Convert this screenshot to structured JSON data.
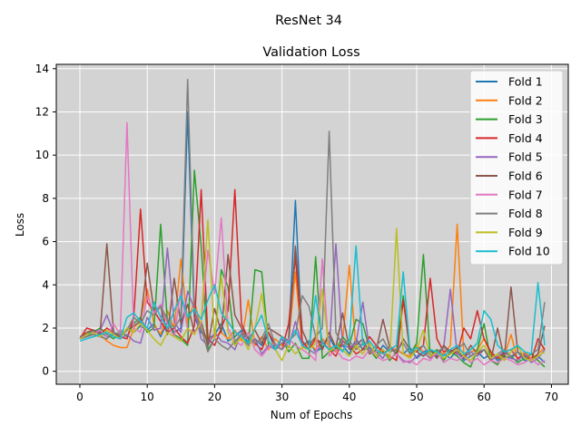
{
  "chart_data": {
    "type": "line",
    "suptitle": "ResNet 34",
    "title": "Validation Loss",
    "xlabel": "Num of Epochs",
    "ylabel": "Loss",
    "xlim": [
      -3.5,
      72.5
    ],
    "ylim": [
      -0.6,
      14.2
    ],
    "xticks": [
      0,
      10,
      20,
      30,
      40,
      50,
      60,
      70
    ],
    "yticks": [
      0,
      2,
      4,
      6,
      8,
      10,
      12,
      14
    ],
    "grid": true,
    "background": "#d3d3d3",
    "legend_position": "top-right",
    "x": [
      0,
      1,
      2,
      3,
      4,
      5,
      6,
      7,
      8,
      9,
      10,
      11,
      12,
      13,
      14,
      15,
      16,
      17,
      18,
      19,
      20,
      21,
      22,
      23,
      24,
      25,
      26,
      27,
      28,
      29,
      30,
      31,
      32,
      33,
      34,
      35,
      36,
      37,
      38,
      39,
      40,
      41,
      42,
      43,
      44,
      45,
      46,
      47,
      48,
      49,
      50,
      51,
      52,
      53,
      54,
      55,
      56,
      57,
      58,
      59,
      60,
      61,
      62,
      63,
      64,
      65,
      66,
      67,
      68,
      69
    ],
    "series": [
      {
        "name": "Fold 1",
        "color": "#1f77b4",
        "values": [
          1.5,
          1.7,
          1.9,
          1.8,
          1.6,
          1.7,
          1.5,
          2.0,
          1.8,
          2.1,
          1.9,
          2.2,
          1.6,
          2.3,
          1.8,
          2.0,
          12.0,
          2.5,
          1.8,
          1.5,
          1.7,
          2.2,
          1.4,
          1.6,
          1.9,
          1.3,
          1.5,
          1.2,
          1.8,
          1.0,
          1.3,
          1.5,
          7.9,
          1.2,
          1.4,
          0.9,
          1.1,
          1.6,
          1.0,
          1.2,
          0.8,
          1.5,
          1.0,
          1.1,
          0.7,
          1.2,
          0.9,
          1.0,
          0.8,
          1.1,
          0.6,
          0.9,
          1.0,
          0.7,
          0.8,
          0.6,
          1.0,
          0.5,
          0.7,
          0.9,
          0.6,
          0.8,
          0.5,
          0.7,
          0.6,
          0.9,
          0.5,
          0.6,
          0.7,
          0.4
        ]
      },
      {
        "name": "Fold 2",
        "color": "#ff7f0e",
        "values": [
          1.6,
          1.8,
          1.9,
          1.7,
          1.4,
          1.2,
          1.1,
          1.1,
          2.0,
          2.4,
          3.8,
          2.2,
          1.7,
          2.8,
          2.0,
          5.2,
          2.2,
          3.3,
          1.9,
          1.5,
          1.6,
          1.8,
          1.5,
          1.9,
          1.4,
          3.3,
          1.2,
          1.6,
          1.0,
          1.5,
          1.2,
          1.4,
          4.6,
          1.1,
          1.3,
          1.0,
          1.5,
          1.2,
          0.9,
          1.4,
          4.9,
          1.0,
          1.3,
          0.9,
          1.2,
          0.8,
          1.1,
          1.0,
          0.8,
          0.7,
          1.2,
          0.9,
          0.6,
          1.0,
          0.8,
          1.2,
          6.8,
          0.7,
          0.9,
          1.0,
          1.5,
          0.8,
          0.6,
          0.7,
          1.7,
          0.5,
          0.9,
          0.6,
          0.8,
          1.1
        ]
      },
      {
        "name": "Fold 3",
        "color": "#2ca02c",
        "values": [
          1.5,
          1.6,
          1.8,
          2.0,
          1.7,
          1.5,
          1.9,
          1.6,
          2.2,
          2.5,
          1.8,
          2.0,
          6.8,
          2.3,
          1.7,
          1.5,
          1.2,
          9.3,
          5.8,
          1.0,
          1.5,
          4.7,
          3.9,
          1.3,
          1.6,
          1.2,
          4.7,
          4.6,
          1.2,
          1.0,
          1.5,
          0.9,
          1.3,
          0.6,
          0.6,
          5.3,
          0.6,
          0.9,
          1.0,
          1.6,
          1.2,
          2.4,
          2.2,
          1.0,
          0.6,
          1.0,
          0.5,
          0.9,
          3.5,
          0.8,
          1.3,
          5.4,
          0.7,
          1.0,
          0.5,
          0.9,
          0.7,
          0.4,
          0.2,
          1.0,
          2.2,
          0.5,
          0.3,
          0.9,
          0.7,
          0.4,
          0.6,
          0.8,
          0.5,
          0.2
        ]
      },
      {
        "name": "Fold 4",
        "color": "#d62728",
        "values": [
          1.5,
          2.0,
          1.9,
          1.7,
          2.0,
          1.8,
          1.6,
          1.5,
          2.5,
          7.5,
          3.2,
          2.8,
          2.3,
          1.8,
          2.0,
          1.6,
          1.3,
          2.1,
          8.4,
          1.5,
          1.2,
          2.0,
          2.8,
          8.4,
          2.2,
          1.5,
          1.3,
          1.0,
          1.8,
          1.2,
          1.0,
          2.2,
          5.3,
          1.4,
          1.0,
          1.5,
          1.3,
          1.0,
          0.7,
          1.4,
          1.2,
          0.8,
          1.0,
          1.6,
          1.2,
          0.9,
          0.7,
          0.5,
          3.3,
          1.0,
          0.9,
          1.2,
          4.3,
          1.5,
          0.9,
          1.0,
          0.8,
          2.0,
          1.5,
          2.8,
          1.5,
          0.9,
          0.6,
          0.9,
          1.0,
          0.6,
          0.8,
          0.5,
          1.5,
          1.0
        ]
      },
      {
        "name": "Fold 5",
        "color": "#9467bd",
        "values": [
          1.6,
          1.7,
          1.8,
          1.9,
          2.6,
          1.8,
          1.5,
          1.7,
          1.4,
          1.3,
          2.5,
          1.9,
          2.0,
          5.7,
          2.3,
          1.8,
          3.7,
          2.9,
          1.5,
          1.2,
          1.8,
          1.4,
          1.3,
          1.0,
          1.8,
          1.2,
          1.5,
          0.8,
          1.2,
          1.0,
          1.5,
          1.1,
          2.3,
          1.2,
          1.0,
          0.8,
          1.4,
          1.0,
          5.9,
          1.2,
          1.1,
          1.3,
          3.2,
          1.0,
          0.9,
          0.6,
          1.2,
          0.8,
          0.5,
          0.4,
          0.7,
          0.9,
          0.6,
          0.8,
          1.1,
          3.8,
          0.8,
          0.6,
          0.9,
          0.7,
          1.0,
          0.5,
          0.7,
          0.9,
          0.6,
          0.5,
          0.8,
          0.4,
          0.6,
          1.0
        ]
      },
      {
        "name": "Fold 6",
        "color": "#8c564b",
        "values": [
          1.5,
          1.8,
          1.9,
          1.7,
          5.9,
          1.8,
          1.6,
          1.9,
          2.1,
          2.3,
          5.0,
          2.8,
          3.0,
          1.7,
          4.3,
          2.2,
          3.1,
          1.8,
          2.3,
          1.2,
          2.9,
          1.8,
          5.4,
          2.6,
          2.0,
          1.5,
          1.9,
          1.3,
          2.0,
          1.8,
          1.6,
          1.4,
          5.8,
          1.9,
          1.2,
          1.6,
          1.0,
          1.8,
          1.1,
          2.7,
          1.0,
          1.2,
          1.5,
          0.8,
          1.0,
          2.4,
          1.1,
          0.8,
          1.5,
          1.0,
          0.9,
          0.7,
          1.0,
          0.6,
          1.2,
          0.9,
          1.1,
          0.6,
          1.2,
          0.8,
          1.0,
          0.5,
          2.0,
          0.6,
          3.9,
          0.9,
          0.7,
          0.5,
          0.8,
          2.1
        ]
      },
      {
        "name": "Fold 7",
        "color": "#e377c2",
        "values": [
          1.5,
          1.6,
          1.7,
          1.9,
          1.6,
          2.2,
          1.7,
          11.5,
          2.0,
          1.8,
          3.5,
          2.7,
          3.1,
          2.2,
          1.6,
          3.8,
          1.9,
          1.8,
          2.2,
          5.6,
          3.6,
          7.1,
          2.0,
          1.4,
          1.2,
          1.8,
          1.0,
          0.7,
          1.1,
          1.3,
          1.0,
          1.5,
          1.2,
          1.0,
          0.8,
          0.5,
          5.2,
          0.7,
          1.0,
          0.6,
          0.5,
          0.7,
          0.6,
          1.0,
          0.7,
          0.5,
          0.6,
          0.8,
          0.4,
          0.5,
          0.3,
          0.6,
          0.5,
          0.9,
          0.4,
          0.6,
          0.5,
          0.7,
          0.4,
          0.6,
          0.3,
          0.5,
          0.4,
          0.6,
          0.5,
          0.3,
          0.4,
          0.6,
          0.3,
          0.5
        ]
      },
      {
        "name": "Fold 8",
        "color": "#7f7f7f",
        "values": [
          1.5,
          1.6,
          1.7,
          1.6,
          1.5,
          1.8,
          1.7,
          1.9,
          2.5,
          2.2,
          2.8,
          2.6,
          3.0,
          2.4,
          2.0,
          2.5,
          13.5,
          2.8,
          2.0,
          0.9,
          1.5,
          1.2,
          1.0,
          1.4,
          1.7,
          1.6,
          1.3,
          1.5,
          2.2,
          1.2,
          1.0,
          1.4,
          1.7,
          3.5,
          3.0,
          1.6,
          2.0,
          11.1,
          1.8,
          1.2,
          1.4,
          1.0,
          1.3,
          0.9,
          1.2,
          1.5,
          0.9,
          1.0,
          1.3,
          0.8,
          1.0,
          1.2,
          0.7,
          0.9,
          1.1,
          0.8,
          1.0,
          1.3,
          0.7,
          0.9,
          1.0,
          0.6,
          0.8,
          1.0,
          0.7,
          0.9,
          0.6,
          0.8,
          1.0,
          3.2
        ]
      },
      {
        "name": "Fold 9",
        "color": "#bcbd22",
        "values": [
          1.5,
          1.7,
          1.8,
          1.6,
          1.9,
          1.7,
          1.5,
          2.0,
          1.8,
          2.2,
          1.9,
          1.5,
          1.2,
          1.8,
          1.6,
          1.4,
          2.0,
          1.7,
          2.3,
          7.0,
          1.5,
          4.4,
          1.8,
          1.2,
          1.6,
          1.0,
          2.0,
          3.6,
          1.4,
          1.0,
          0.5,
          1.2,
          0.8,
          1.1,
          1.0,
          1.3,
          3.8,
          0.9,
          1.2,
          1.0,
          0.7,
          1.2,
          0.8,
          1.3,
          0.7,
          1.0,
          0.6,
          6.6,
          0.8,
          0.6,
          1.0,
          1.9,
          0.7,
          0.9,
          0.6,
          0.8,
          1.0,
          0.7,
          0.5,
          0.9,
          1.2,
          0.6,
          0.8,
          0.5,
          0.9,
          1.2,
          0.6,
          0.5,
          0.7,
          0.9
        ]
      },
      {
        "name": "Fold 10",
        "color": "#17becf",
        "values": [
          1.4,
          1.5,
          1.6,
          1.7,
          1.8,
          1.6,
          1.5,
          2.5,
          2.7,
          2.3,
          2.0,
          3.2,
          2.5,
          2.0,
          2.8,
          3.5,
          2.5,
          2.9,
          2.4,
          3.3,
          4.0,
          2.7,
          2.3,
          1.8,
          1.6,
          1.3,
          2.0,
          2.6,
          1.4,
          1.0,
          1.6,
          1.3,
          1.9,
          1.2,
          1.0,
          3.5,
          1.3,
          1.0,
          1.2,
          0.9,
          1.5,
          5.8,
          1.2,
          1.4,
          1.0,
          0.8,
          1.0,
          1.2,
          4.6,
          0.9,
          1.1,
          0.8,
          1.0,
          0.9,
          0.7,
          1.0,
          1.2,
          0.8,
          1.0,
          1.3,
          2.8,
          2.4,
          1.2,
          0.9,
          1.0,
          1.2,
          0.9,
          0.8,
          4.1,
          1.2
        ]
      }
    ]
  }
}
